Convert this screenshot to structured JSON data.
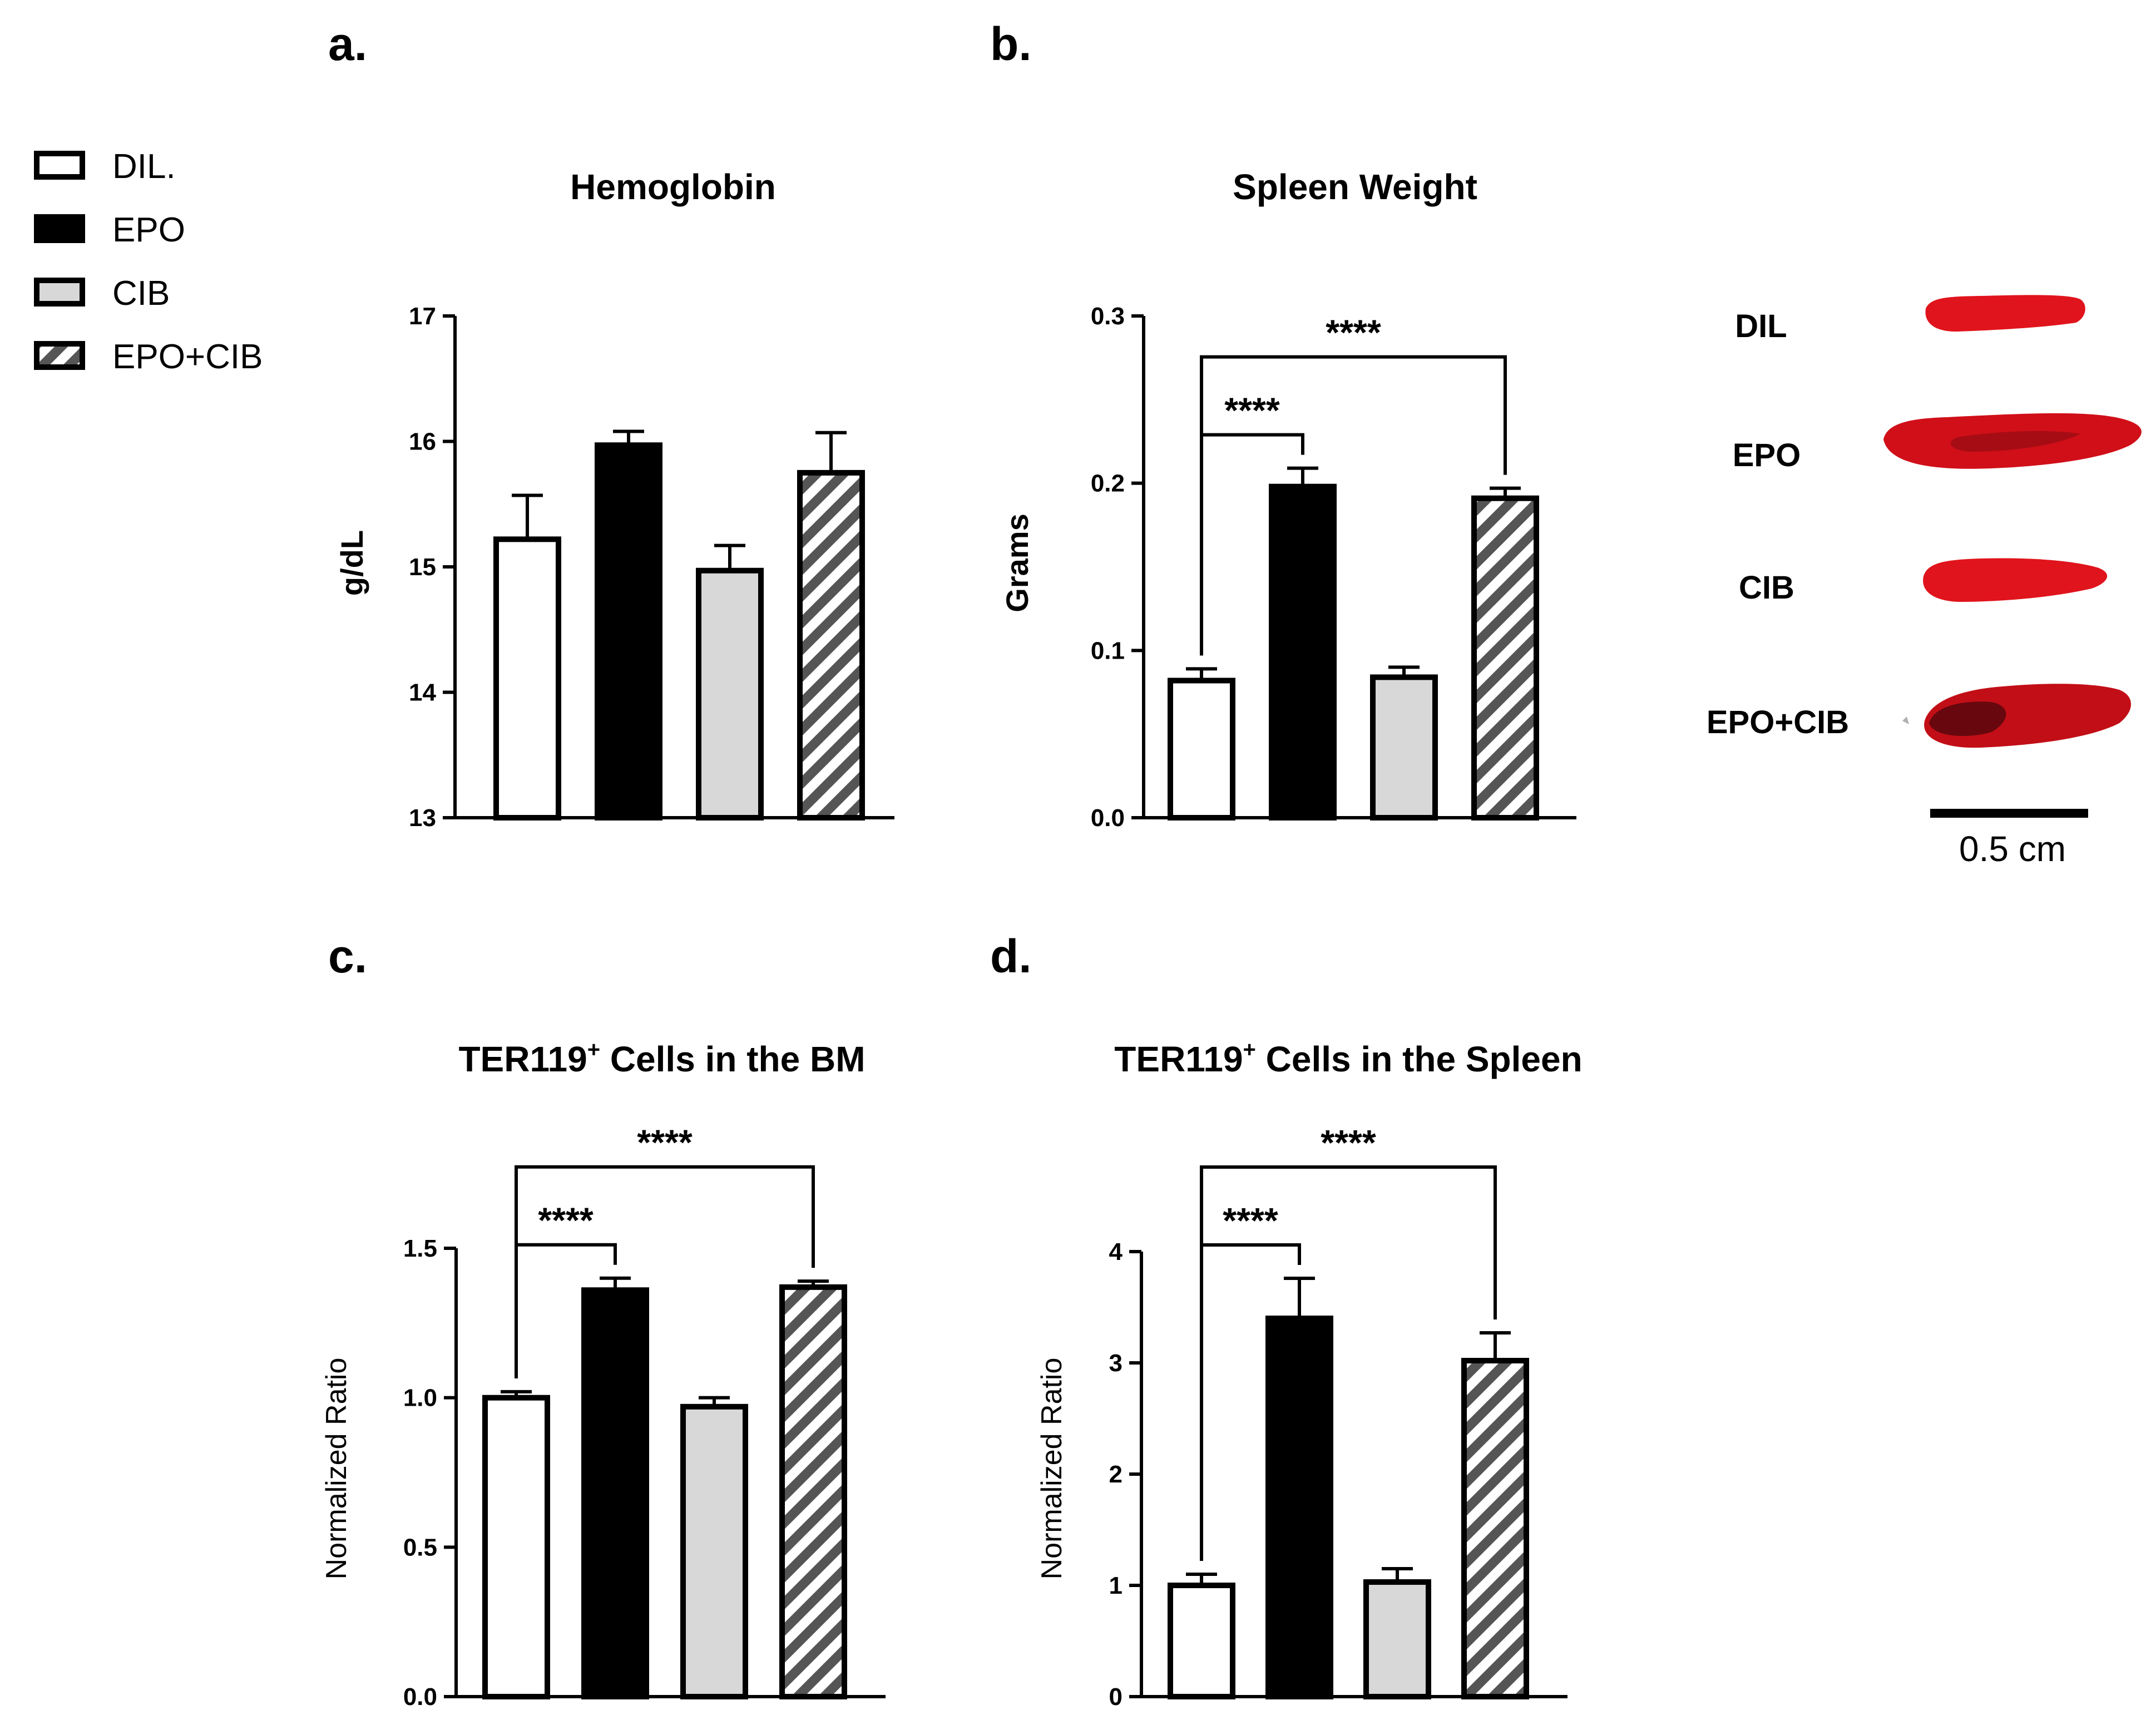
{
  "legend": {
    "items": [
      {
        "label": "DIL.",
        "style": "white"
      },
      {
        "label": "EPO",
        "style": "black"
      },
      {
        "label": "CIB",
        "style": "gray"
      },
      {
        "label": "EPO+CIB",
        "style": "hatch"
      }
    ]
  },
  "colors": {
    "black": "#000000",
    "gray": "#d8d8d8",
    "hatch_stroke": "#555555",
    "spleen_red": "#d8121c",
    "spleen_dark": "#7a0a10"
  },
  "chart_data": [
    {
      "id": "a",
      "panel_label": "a.",
      "type": "bar",
      "title": "Hemoglobin",
      "ylabel": "g/dL",
      "categories": [
        "DIL.",
        "EPO",
        "CIB",
        "EPO+CIB"
      ],
      "values": [
        15.22,
        15.97,
        14.97,
        15.75
      ],
      "errors": [
        0.35,
        0.11,
        0.2,
        0.32
      ],
      "ylim": [
        13,
        17
      ],
      "yticks": [
        "13",
        "14",
        "15",
        "16",
        "17"
      ],
      "significance": []
    },
    {
      "id": "b",
      "panel_label": "b.",
      "type": "bar",
      "title": "Spleen Weight",
      "ylabel": "Grams",
      "categories": [
        "DIL.",
        "EPO",
        "CIB",
        "EPO+CIB"
      ],
      "values": [
        0.082,
        0.198,
        0.084,
        0.191
      ],
      "errors": [
        0.007,
        0.011,
        0.006,
        0.006
      ],
      "ylim": [
        0,
        0.3
      ],
      "yticks": [
        "0.0",
        "0.1",
        "0.2",
        "0.3"
      ],
      "significance": [
        {
          "from": 0,
          "to": 1,
          "label": "****"
        },
        {
          "from": 0,
          "to": 3,
          "label": "****"
        }
      ]
    },
    {
      "id": "c",
      "panel_label": "c.",
      "type": "bar",
      "title": "TER119",
      "title_sup": "+",
      "title_rest": " Cells in the BM",
      "ylabel": "Normalized Ratio",
      "categories": [
        "DIL.",
        "EPO",
        "CIB",
        "EPO+CIB"
      ],
      "values": [
        1.0,
        1.36,
        0.97,
        1.37
      ],
      "errors": [
        0.02,
        0.04,
        0.03,
        0.02
      ],
      "ylim": [
        0,
        1.5
      ],
      "yticks": [
        "0.0",
        "0.5",
        "1.0",
        "1.5"
      ],
      "significance": [
        {
          "from": 0,
          "to": 1,
          "label": "****"
        },
        {
          "from": 0,
          "to": 3,
          "label": "****"
        }
      ]
    },
    {
      "id": "d",
      "panel_label": "d.",
      "type": "bar",
      "title": "TER119",
      "title_sup": "+",
      "title_rest": " Cells in the Spleen",
      "ylabel": "Normalized Ratio",
      "categories": [
        "DIL.",
        "EPO",
        "CIB",
        "EPO+CIB"
      ],
      "values": [
        1.0,
        3.4,
        1.03,
        3.02
      ],
      "errors": [
        0.1,
        0.36,
        0.12,
        0.25
      ],
      "ylim": [
        0,
        4
      ],
      "yticks": [
        "0",
        "1",
        "2",
        "3",
        "4"
      ],
      "significance": [
        {
          "from": 0,
          "to": 1,
          "label": "****"
        },
        {
          "from": 0,
          "to": 3,
          "label": "****"
        }
      ]
    }
  ],
  "photos": {
    "labels": [
      "DIL",
      "EPO",
      "CIB",
      "EPO+CIB"
    ],
    "scale_bar_label": "0.5 cm"
  }
}
